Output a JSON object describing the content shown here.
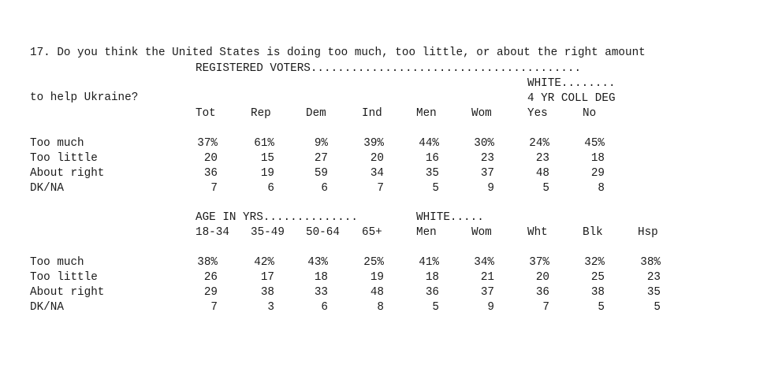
{
  "question": {
    "line1": "17. Do you think the United States is doing too much, too little, or about the right amount",
    "line2": "to help Ukraine?"
  },
  "block1": {
    "header_main": "REGISTERED VOTERS........................................",
    "header_white": "WHITE........",
    "header_degree": "4 YR COLL DEG",
    "columns": [
      "Tot",
      "Rep",
      "Dem",
      "Ind",
      "Men",
      "Wom",
      "Yes",
      "No"
    ],
    "rows": [
      {
        "label": "Too much",
        "values": [
          "37%",
          "61%",
          "9%",
          "39%",
          "44%",
          "30%",
          "24%",
          "45%"
        ]
      },
      {
        "label": "Too little",
        "values": [
          "20",
          "15",
          "27",
          "20",
          "16",
          "23",
          "23",
          "18"
        ]
      },
      {
        "label": "About right",
        "values": [
          "36",
          "19",
          "59",
          "34",
          "35",
          "37",
          "48",
          "29"
        ]
      },
      {
        "label": "DK/NA",
        "values": [
          "7",
          "6",
          "6",
          "7",
          "5",
          "9",
          "5",
          "8"
        ]
      }
    ]
  },
  "block2": {
    "header_age": "AGE IN YRS..............",
    "header_white": "WHITE.....",
    "columns": [
      "18-34",
      "35-49",
      "50-64",
      "65+",
      "Men",
      "Wom",
      "Wht",
      "Blk",
      "Hsp"
    ],
    "rows": [
      {
        "label": "Too much",
        "values": [
          "38%",
          "42%",
          "43%",
          "25%",
          "41%",
          "34%",
          "37%",
          "32%",
          "38%"
        ]
      },
      {
        "label": "Too little",
        "values": [
          "26",
          "17",
          "18",
          "19",
          "18",
          "21",
          "20",
          "25",
          "23"
        ]
      },
      {
        "label": "About right",
        "values": [
          "29",
          "38",
          "33",
          "48",
          "36",
          "37",
          "36",
          "38",
          "35"
        ]
      },
      {
        "label": "DK/NA",
        "values": [
          "7",
          "3",
          "6",
          "8",
          "5",
          "9",
          "7",
          "5",
          "5"
        ]
      }
    ]
  }
}
